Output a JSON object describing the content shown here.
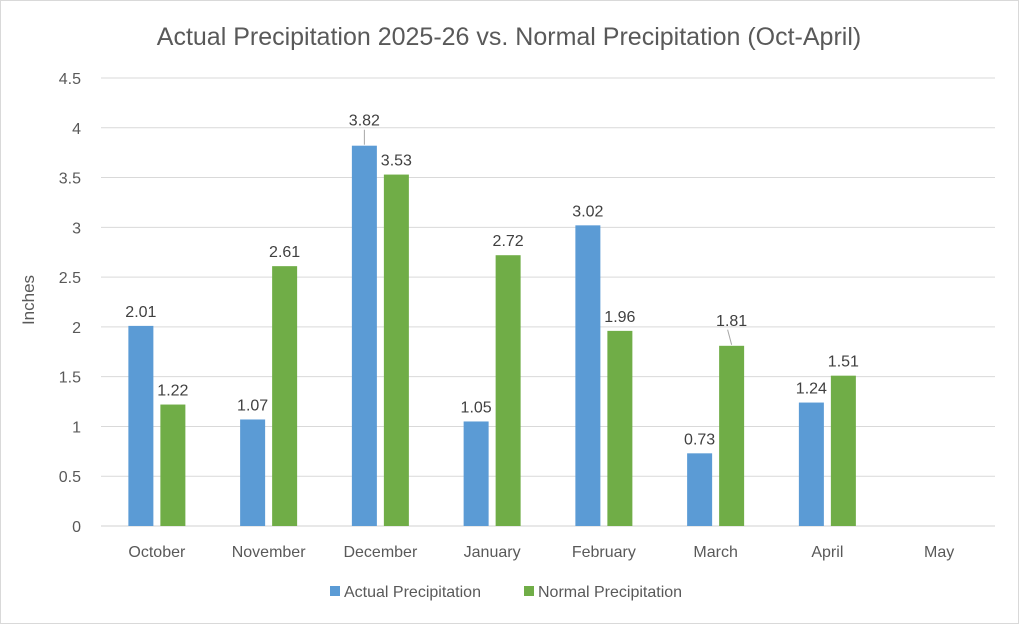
{
  "chart_data": {
    "type": "bar",
    "title": "Actual Precipitation 2025-26 vs. Normal Precipitation (Oct-April)",
    "xlabel": "",
    "ylabel": "Inches",
    "ylim": [
      0,
      4.5
    ],
    "yticks": [
      "0",
      "0.5",
      "1",
      "1.5",
      "2",
      "2.5",
      "3",
      "3.5",
      "4",
      "4.5"
    ],
    "grid": true,
    "legend_position": "bottom",
    "categories": [
      "October",
      "November",
      "December",
      "January",
      "February",
      "March",
      "April",
      "May"
    ],
    "series": [
      {
        "name": "Actual Precipitation",
        "color": "#5b9bd5",
        "values": [
          2.01,
          1.07,
          3.82,
          1.05,
          3.02,
          0.73,
          1.24,
          null
        ],
        "labels": [
          "2.01",
          "1.07",
          "3.82",
          "1.05",
          "3.02",
          "0.73",
          "1.24",
          ""
        ]
      },
      {
        "name": "Normal Precipitation",
        "color": "#70ad47",
        "values": [
          1.22,
          2.61,
          3.53,
          2.72,
          1.96,
          1.81,
          1.51,
          null
        ],
        "labels": [
          "1.22",
          "2.61",
          "3.53",
          "2.72",
          "1.96",
          "1.81",
          "1.51",
          ""
        ]
      }
    ]
  }
}
